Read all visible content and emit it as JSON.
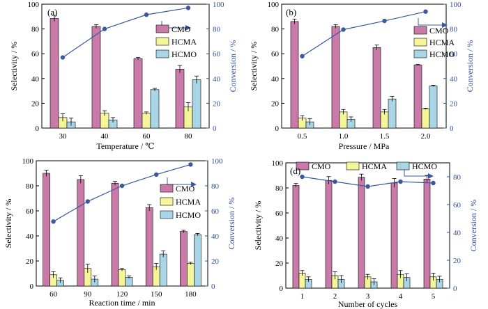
{
  "colors": {
    "cmo": "#c97aa8",
    "hcma": "#f5f59a",
    "hcmo": "#a8d6e6",
    "line": "#3a57a0",
    "right_axis": "#2f4f9a"
  },
  "icon": "arrow-right-icon",
  "chart_data": [
    {
      "type": "bar",
      "panel_label": "(a)",
      "xlabel": "Temperature / ℃",
      "ylabel": "Selectivity / %",
      "ylabel_right": "Conversion / %",
      "ylim": [
        0,
        100
      ],
      "ylim_right": [
        0,
        100
      ],
      "yticks": [
        0,
        20,
        40,
        60,
        80,
        100
      ],
      "categories": [
        "30",
        "40",
        "60",
        "80"
      ],
      "legend": {
        "placement": "right-middle",
        "labels": [
          "CMO",
          "HCMA",
          "HCMO"
        ]
      },
      "series": [
        {
          "name": "CMO",
          "values": [
            88.5,
            82,
            56,
            47.5
          ],
          "errors": [
            2.5,
            1.5,
            1,
            3
          ]
        },
        {
          "name": "HCMA",
          "values": [
            8.5,
            12,
            12,
            17
          ],
          "errors": [
            3,
            2,
            1,
            3.5
          ]
        },
        {
          "name": "HCMO",
          "values": [
            5,
            6.5,
            31,
            39
          ],
          "errors": [
            3,
            2,
            1,
            3
          ]
        }
      ],
      "conversion": [
        57,
        80,
        91.5,
        97
      ]
    },
    {
      "type": "bar",
      "panel_label": "(b)",
      "xlabel": "Pressure / MPa",
      "ylabel": "Selectivity / %",
      "ylabel_right": "Conversion / %",
      "ylim": [
        0,
        100
      ],
      "ylim_right": [
        0,
        100
      ],
      "yticks": [
        0,
        20,
        40,
        60,
        80,
        100
      ],
      "categories": [
        "0.5",
        "1.0",
        "1.5",
        "2.0"
      ],
      "legend": {
        "placement": "right-middle",
        "labels": [
          "CMO",
          "HCMA",
          "HCMO"
        ]
      },
      "series": [
        {
          "name": "CMO",
          "values": [
            86,
            82,
            65,
            51
          ],
          "errors": [
            2,
            1.5,
            2,
            0.5
          ]
        },
        {
          "name": "HCMA",
          "values": [
            8,
            13,
            13,
            15.5
          ],
          "errors": [
            2,
            2,
            2,
            0.5
          ]
        },
        {
          "name": "HCMO",
          "values": [
            5,
            7,
            23.5,
            34
          ],
          "errors": [
            2.5,
            2,
            2,
            0.5
          ]
        }
      ],
      "conversion": [
        58,
        79.5,
        86.5,
        94
      ]
    },
    {
      "type": "bar",
      "panel_label": "",
      "xlabel": "Reaction time / min",
      "ylabel": "Selectivity / %",
      "ylabel_right": "Conversion / %",
      "ylim": [
        0,
        100
      ],
      "ylim_right": [
        0,
        100
      ],
      "yticks": [
        0,
        20,
        40,
        60,
        80,
        100
      ],
      "categories": [
        "60",
        "90",
        "120",
        "150",
        "180"
      ],
      "legend": {
        "placement": "right-middle",
        "labels": [
          "CMO",
          "HCMA",
          "HCMO"
        ]
      },
      "series": [
        {
          "name": "CMO",
          "values": [
            90,
            85,
            82,
            62.5,
            43.5
          ],
          "errors": [
            2.5,
            3,
            1.5,
            2.5,
            1
          ]
        },
        {
          "name": "HCMA",
          "values": [
            9,
            14,
            13,
            15.5,
            18
          ],
          "errors": [
            2.5,
            3.5,
            1,
            2.5,
            1
          ]
        },
        {
          "name": "HCMO",
          "values": [
            4.5,
            5.5,
            7,
            25.5,
            41
          ],
          "errors": [
            2,
            2.5,
            1,
            2.5,
            1
          ]
        }
      ],
      "conversion": [
        51.5,
        67.5,
        80,
        89,
        97
      ]
    },
    {
      "type": "bar",
      "panel_label": "(d)",
      "xlabel": "Number of cycles",
      "ylabel": "Selectivity / %",
      "ylabel_right": "Conversion / %",
      "ylim": [
        0,
        100
      ],
      "ylim_right": [
        0,
        90
      ],
      "yticks": [
        0,
        20,
        40,
        60,
        80,
        100
      ],
      "yticks_right": [
        0,
        20,
        40,
        60,
        80
      ],
      "categories": [
        "1",
        "2",
        "3",
        "4",
        "5"
      ],
      "legend": {
        "placement": "top",
        "labels": [
          "CMO",
          "HCMA",
          "HCMO"
        ]
      },
      "series": [
        {
          "name": "CMO",
          "values": [
            82,
            86,
            88.5,
            84,
            87
          ],
          "errors": [
            1.5,
            3,
            2.5,
            3.5,
            3
          ]
        },
        {
          "name": "HCMA",
          "values": [
            12,
            10,
            9,
            11,
            9
          ],
          "errors": [
            2,
            3,
            2,
            3,
            3
          ]
        },
        {
          "name": "HCMO",
          "values": [
            7,
            7,
            5,
            8.5,
            7
          ],
          "errors": [
            2,
            3,
            2.5,
            3,
            2.5
          ]
        }
      ],
      "conversion": [
        80,
        76.5,
        73,
        76.5,
        75.5
      ]
    }
  ]
}
